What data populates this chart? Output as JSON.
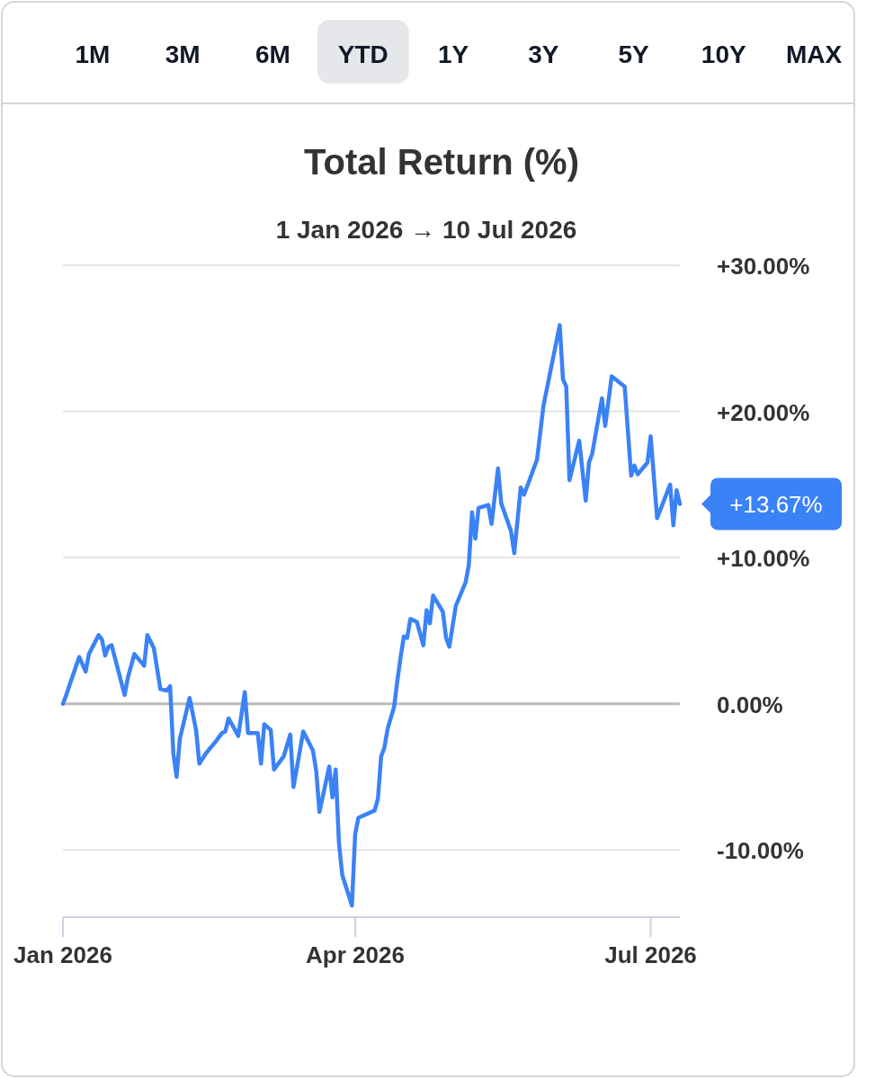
{
  "chart_data": {
    "type": "line",
    "title": "Total Return (%)",
    "subtitle": "1 Jan 2026 → 10 Jul 2026",
    "annotations": [
      "1M",
      "3M",
      "6M",
      "YTD",
      "1Y",
      "3Y",
      "5Y",
      "10Y",
      "MAX",
      {
        "text": "+13.67%",
        "x": "2026-07-10",
        "y": 13.67
      }
    ],
    "x": [
      "2026-01-01",
      "2026-01-02",
      "2026-01-06",
      "2026-01-08",
      "2026-01-09",
      "2026-01-12",
      "2026-01-13",
      "2026-01-14",
      "2026-01-15",
      "2026-01-16",
      "2026-01-20",
      "2026-01-21",
      "2026-01-23",
      "2026-01-26",
      "2026-01-27",
      "2026-01-29",
      "2026-01-31",
      "2026-02-02",
      "2026-02-03",
      "2026-02-04",
      "2026-02-05",
      "2026-02-06",
      "2026-02-09",
      "2026-02-11",
      "2026-02-12",
      "2026-02-14",
      "2026-02-17",
      "2026-02-19",
      "2026-02-20",
      "2026-02-21",
      "2026-02-24",
      "2026-02-26",
      "2026-02-27",
      "2026-03-02",
      "2026-03-03",
      "2026-03-04",
      "2026-03-06",
      "2026-03-07",
      "2026-03-10",
      "2026-03-12",
      "2026-03-13",
      "2026-03-16",
      "2026-03-19",
      "2026-03-20",
      "2026-03-21",
      "2026-03-24",
      "2026-03-25",
      "2026-03-26",
      "2026-03-27",
      "2026-03-28",
      "2026-03-31",
      "2026-04-01",
      "2026-04-02",
      "2026-04-07",
      "2026-04-08",
      "2026-04-09",
      "2026-04-10",
      "2026-04-11",
      "2026-04-13",
      "2026-04-14",
      "2026-04-15",
      "2026-04-16",
      "2026-04-17",
      "2026-04-18",
      "2026-04-20",
      "2026-04-22",
      "2026-04-23",
      "2026-04-24",
      "2026-04-25",
      "2026-04-28",
      "2026-04-29",
      "2026-04-30",
      "2026-05-02",
      "2026-05-05",
      "2026-05-06",
      "2026-05-07",
      "2026-05-08",
      "2026-05-09",
      "2026-05-12",
      "2026-05-13",
      "2026-05-15",
      "2026-05-16",
      "2026-05-19",
      "2026-05-20",
      "2026-05-22",
      "2026-05-23",
      "2026-05-27",
      "2026-05-29",
      "2026-06-03",
      "2026-06-04",
      "2026-06-05",
      "2026-06-06",
      "2026-06-09",
      "2026-06-11",
      "2026-06-12",
      "2026-06-13",
      "2026-06-16",
      "2026-06-17",
      "2026-06-19",
      "2026-06-23",
      "2026-06-25",
      "2026-06-26",
      "2026-06-27",
      "2026-06-30",
      "2026-07-01",
      "2026-07-03",
      "2026-07-07",
      "2026-07-08",
      "2026-07-09",
      "2026-07-10"
    ],
    "series": [
      {
        "color": "#3b82f6",
        "values": [
          0.0,
          0.6,
          3.2,
          2.2,
          3.4,
          4.7,
          4.4,
          3.3,
          3.9,
          4.0,
          0.6,
          1.8,
          3.4,
          2.6,
          4.7,
          3.8,
          1.0,
          0.9,
          1.2,
          -3.4,
          -5.0,
          -2.4,
          0.4,
          -1.8,
          -4.1,
          -3.4,
          -2.6,
          -2.0,
          -1.9,
          -1.0,
          -2.2,
          0.8,
          -2.0,
          -2.0,
          -4.1,
          -1.4,
          -1.8,
          -4.5,
          -3.6,
          -2.1,
          -5.7,
          -1.9,
          -3.2,
          -4.6,
          -7.4,
          -4.3,
          -6.4,
          -4.5,
          -9.5,
          -11.7,
          -13.8,
          -8.9,
          -7.8,
          -7.3,
          -6.5,
          -3.6,
          -3.0,
          -1.7,
          -0.2,
          1.6,
          3.2,
          4.6,
          4.5,
          5.8,
          5.6,
          4.0,
          6.4,
          5.5,
          7.4,
          6.3,
          4.5,
          3.9,
          6.7,
          8.3,
          9.5,
          13.1,
          11.3,
          13.4,
          13.6,
          12.3,
          16.1,
          13.7,
          11.8,
          10.3,
          14.8,
          14.3,
          16.7,
          20.4,
          25.9,
          22.2,
          21.7,
          15.3,
          18.0,
          13.9,
          16.5,
          17.1,
          20.9,
          19.0,
          22.4,
          21.7,
          15.6,
          16.3,
          15.7,
          16.5,
          18.3,
          12.7,
          15.0,
          12.2,
          14.6,
          13.67
        ]
      }
    ],
    "xlim": [
      "2026-01-01",
      "2026-07-10"
    ],
    "xticks": [
      {
        "value": "2026-01-01",
        "label": "Jan 2026"
      },
      {
        "value": "2026-04-01",
        "label": "Apr 2026"
      },
      {
        "value": "2026-07-01",
        "label": "Jul 2026"
      }
    ],
    "ylim": [
      -14.6,
      30
    ],
    "yticks": [
      {
        "value": -10,
        "label": "-10.00%"
      },
      {
        "value": 0,
        "label": "0.00%"
      },
      {
        "value": 10,
        "label": "+10.00%"
      },
      {
        "value": 20,
        "label": "+20.00%"
      },
      {
        "value": 30,
        "label": "+30.00%"
      }
    ],
    "ref_lines": [
      {
        "axis": "y",
        "value": 0,
        "color": "#bbbbbb"
      }
    ],
    "grid": "y",
    "marker": "none",
    "line_style": "solid"
  }
}
